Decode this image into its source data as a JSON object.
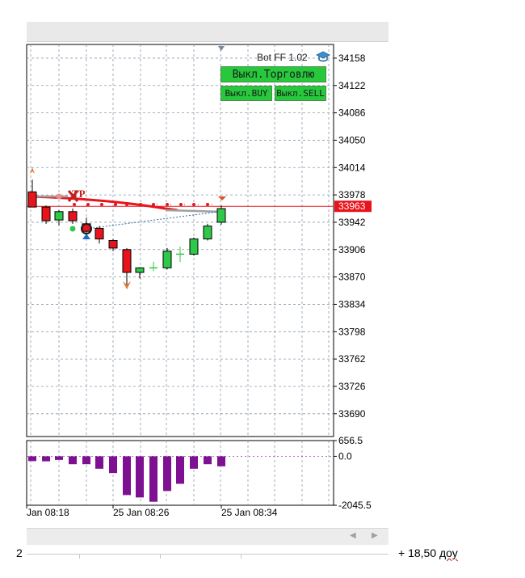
{
  "chart_data": [
    {
      "type": "candlestick",
      "title": "",
      "y_axis_ticks": [
        34158,
        34122,
        34086,
        34050,
        34014,
        33978,
        33942,
        33906,
        33870,
        33834,
        33798,
        33762,
        33726,
        33690
      ],
      "y_range": [
        33660,
        34176
      ],
      "current_price": 33963,
      "current_price_label": "33963",
      "x_time_labels": [
        "Jan 08:18",
        "25 Jan 08:26",
        "25 Jan 08:34"
      ],
      "grid": true,
      "candles": [
        {
          "open": 33982,
          "high": 33998,
          "low": 33966,
          "close": 33962
        },
        {
          "open": 33962,
          "high": 33964,
          "low": 33940,
          "close": 33944
        },
        {
          "open": 33945,
          "high": 33958,
          "low": 33938,
          "close": 33956
        },
        {
          "open": 33956,
          "high": 33960,
          "low": 33940,
          "close": 33944
        },
        {
          "open": 33940,
          "high": 33948,
          "low": 33922,
          "close": 33930
        },
        {
          "open": 33934,
          "high": 33937,
          "low": 33914,
          "close": 33920
        },
        {
          "open": 33918,
          "high": 33920,
          "low": 33904,
          "close": 33908
        },
        {
          "open": 33906,
          "high": 33908,
          "low": 33860,
          "close": 33876
        },
        {
          "open": 33876,
          "high": 33883,
          "low": 33868,
          "close": 33882
        },
        {
          "open": 33882,
          "high": 33890,
          "low": 33878,
          "close": 33882
        },
        {
          "open": 33882,
          "high": 33908,
          "low": 33880,
          "close": 33904
        },
        {
          "open": 33900,
          "high": 33910,
          "low": 33890,
          "close": 33900
        },
        {
          "open": 33900,
          "high": 33922,
          "low": 33898,
          "close": 33920
        },
        {
          "open": 33920,
          "high": 33940,
          "low": 33918,
          "close": 33937
        },
        {
          "open": 33942,
          "high": 33964,
          "low": 33939,
          "close": 33960
        }
      ],
      "trade_markers": {
        "tp_label": "TP"
      }
    },
    {
      "type": "bar",
      "title": "",
      "y_axis_ticks": [
        "656.5",
        "0.0",
        "-2045.5"
      ],
      "y_range": [
        -2045.5,
        656.5
      ],
      "values": [
        -200,
        -210,
        -150,
        -330,
        -330,
        -520,
        -700,
        -1620,
        -1720,
        -1900,
        -1450,
        -1150,
        -520,
        -330,
        -420
      ]
    }
  ],
  "bot_panel": {
    "bot_name": "Bot FF 1.02",
    "toggle_trading_label": "Выкл.Торговлю",
    "toggle_buy_label": "Выкл.BUY",
    "toggle_sell_label": "Выкл.SELL",
    "icon": "graduation-cap-icon"
  },
  "footer": {
    "left_text": "2",
    "right_text": "+ 18,50",
    "right_unit": "доу"
  },
  "colors": {
    "bull": "#2ec84a",
    "bear": "#e8141c",
    "histogram": "#7e1192",
    "price_line": "#e8141c",
    "button_bg": "#27c83c"
  }
}
